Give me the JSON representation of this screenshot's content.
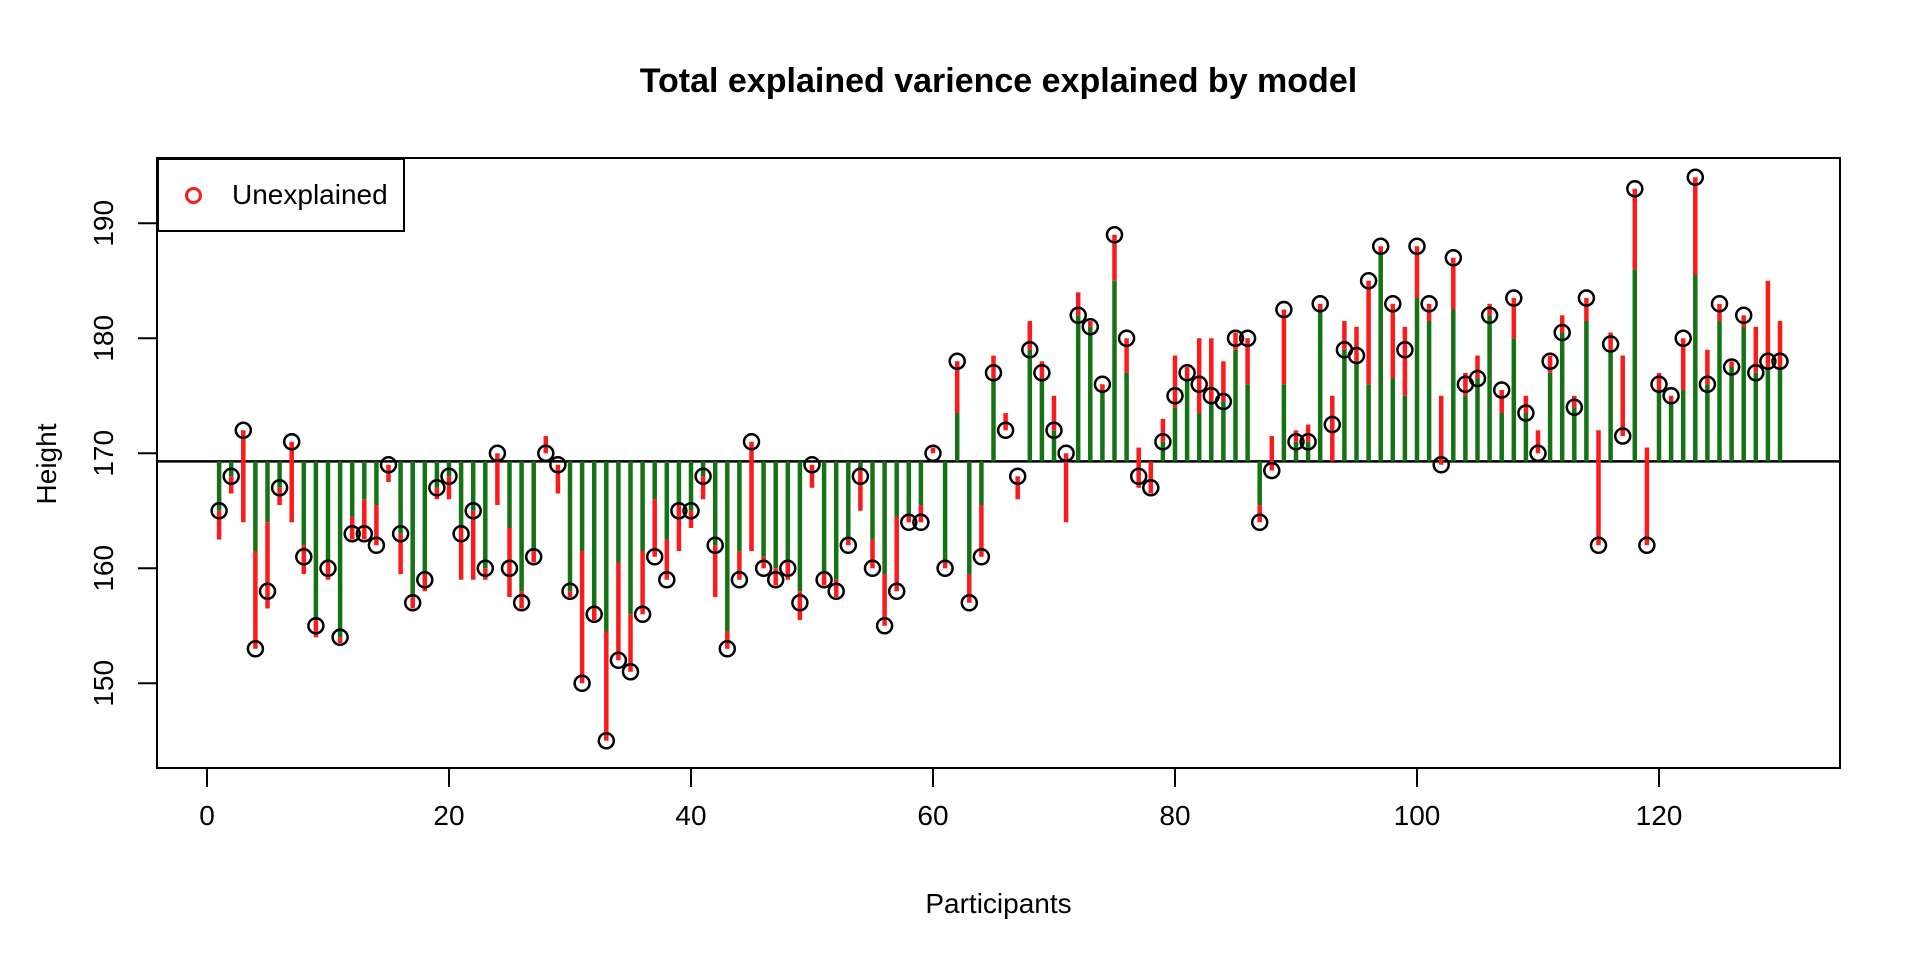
{
  "chart_data": {
    "type": "scatter",
    "subtype": "stem-residual-plot",
    "title": "Total explained varience explained by model",
    "xlabel": "Participants",
    "ylabel": "Height",
    "x_ticks": [
      0,
      20,
      40,
      60,
      80,
      100,
      120
    ],
    "y_ticks": [
      150,
      160,
      170,
      180,
      190
    ],
    "xlim": [
      -4.2,
      135.2
    ],
    "ylim": [
      142.6,
      195.7
    ],
    "grid": false,
    "mean_line": 169.3,
    "legend": {
      "label": "Unexplained",
      "marker": "o",
      "position": "top-left"
    },
    "colors": {
      "explained": "#157315",
      "unexplained": "#fc1a1a",
      "point": "#000000",
      "axis": "#000000"
    },
    "note": "participants: [actual(circle), green_end(null=none; green spans mean..g), red_from, red_to]",
    "participants": [
      [
        165,
        165,
        165,
        162.5
      ],
      [
        168,
        168,
        168,
        166.5
      ],
      [
        172,
        null,
        172,
        164
      ],
      [
        153,
        161.5,
        161.5,
        153
      ],
      [
        158,
        164,
        164,
        156.5
      ],
      [
        167,
        167,
        167,
        165.5
      ],
      [
        171,
        null,
        171,
        164
      ],
      [
        161,
        162,
        162,
        159.5
      ],
      [
        155,
        155.5,
        155.5,
        154
      ],
      [
        160,
        160.5,
        160.5,
        159
      ],
      [
        154,
        154,
        154,
        153.5
      ],
      [
        163,
        164.5,
        164.5,
        162.5
      ],
      [
        163,
        166,
        166,
        162.5
      ],
      [
        162,
        165.5,
        165.5,
        162
      ],
      [
        169,
        null,
        169,
        167.5
      ],
      [
        163,
        163,
        163,
        159.5
      ],
      [
        157,
        157.5,
        157.5,
        156.5
      ],
      [
        159,
        159.5,
        159.5,
        158
      ],
      [
        167,
        167,
        167,
        166
      ],
      [
        168,
        168,
        168,
        166
      ],
      [
        163,
        163.5,
        163.5,
        159
      ],
      [
        165,
        165,
        165,
        159
      ],
      [
        160,
        160,
        160,
        159
      ],
      [
        170,
        null,
        170,
        165.5
      ],
      [
        160,
        163.5,
        163.5,
        157.5
      ],
      [
        157,
        158,
        158,
        156.5
      ],
      [
        161,
        161.5,
        161.5,
        160.5
      ],
      [
        170,
        null,
        170,
        171.5
      ],
      [
        169,
        null,
        169,
        166.5
      ],
      [
        158,
        158,
        158,
        157.5
      ],
      [
        150,
        161.5,
        161.5,
        150
      ],
      [
        156,
        156.5,
        156.5,
        155.5
      ],
      [
        145,
        154.5,
        154.5,
        145
      ],
      [
        152,
        160.5,
        160.5,
        152
      ],
      [
        151,
        156,
        156,
        151
      ],
      [
        156,
        161.5,
        161.5,
        156
      ],
      [
        161,
        166,
        166,
        161
      ],
      [
        159,
        162.5,
        162.5,
        159
      ],
      [
        165,
        165.5,
        165.5,
        161.5
      ],
      [
        165,
        165,
        165,
        163.5
      ],
      [
        168,
        168,
        168,
        166
      ],
      [
        162,
        162,
        162,
        157.5
      ],
      [
        153,
        154.5,
        154.5,
        153
      ],
      [
        159,
        161.5,
        161.5,
        159
      ],
      [
        171,
        null,
        171,
        161.5
      ],
      [
        160,
        161,
        161,
        160
      ],
      [
        159,
        160,
        160,
        158.5
      ],
      [
        160,
        160.5,
        160.5,
        159
      ],
      [
        157,
        158,
        158,
        155.5
      ],
      [
        169,
        null,
        169,
        167
      ],
      [
        159,
        159.5,
        159.5,
        158.5
      ],
      [
        158,
        159,
        159,
        157.5
      ],
      [
        162,
        162.5,
        162.5,
        162
      ],
      [
        168,
        168.5,
        168.5,
        165
      ],
      [
        160,
        162.5,
        162.5,
        160
      ],
      [
        155,
        159.5,
        159.5,
        155
      ],
      [
        158,
        164.5,
        164.5,
        158
      ],
      [
        164,
        164.5,
        164.5,
        164
      ],
      [
        164,
        165.5,
        165.5,
        164
      ],
      [
        170,
        null,
        170,
        170.5
      ],
      [
        160,
        160.5,
        160.5,
        160
      ],
      [
        178,
        173.5,
        173.5,
        178
      ],
      [
        157,
        159.5,
        159.5,
        157
      ],
      [
        161,
        165.5,
        165.5,
        161
      ],
      [
        177,
        176.5,
        176.5,
        178.5
      ],
      [
        172,
        null,
        172,
        173.5
      ],
      [
        168,
        null,
        168,
        166
      ],
      [
        179,
        179,
        179,
        181.5
      ],
      [
        177,
        176.5,
        176.5,
        178
      ],
      [
        172,
        172,
        172,
        175
      ],
      [
        170,
        null,
        170,
        164
      ],
      [
        182,
        182,
        182,
        184
      ],
      [
        181,
        181,
        181,
        181.5
      ],
      [
        176,
        175.5,
        175.5,
        176
      ],
      [
        189,
        185,
        185,
        189
      ],
      [
        180,
        177,
        177,
        180
      ],
      [
        168,
        null,
        170.5,
        167
      ],
      [
        167,
        null,
        169.3,
        166.5
      ],
      [
        171,
        171,
        171,
        173
      ],
      [
        175,
        174,
        174,
        178.5
      ],
      [
        177,
        176.5,
        176.5,
        177.5
      ],
      [
        176,
        173.5,
        173.5,
        180
      ],
      [
        175,
        174.5,
        174.5,
        180
      ],
      [
        174.5,
        174.5,
        174.5,
        178
      ],
      [
        180,
        179,
        179,
        180.5
      ],
      [
        180,
        176,
        176,
        180
      ],
      [
        164,
        165.5,
        165.5,
        164
      ],
      [
        168.5,
        null,
        171.5,
        168.5
      ],
      [
        182.5,
        176,
        176,
        182.5
      ],
      [
        171,
        171,
        171,
        172
      ],
      [
        171,
        171,
        171,
        172.5
      ],
      [
        183,
        182.5,
        182.5,
        183
      ],
      [
        172.5,
        null,
        175,
        169.3
      ],
      [
        179,
        179,
        179,
        181.5
      ],
      [
        178.5,
        178,
        178,
        181
      ],
      [
        185,
        176,
        176,
        185
      ],
      [
        188,
        187.5,
        187.5,
        188
      ],
      [
        183,
        176.5,
        176.5,
        183
      ],
      [
        179,
        175,
        175,
        181
      ],
      [
        188,
        183.5,
        183.5,
        188
      ],
      [
        183,
        181.5,
        181.5,
        183
      ],
      [
        169,
        null,
        175,
        169
      ],
      [
        187,
        182.5,
        182.5,
        187
      ],
      [
        176,
        175,
        175,
        177
      ],
      [
        176.5,
        176.5,
        176.5,
        178.5
      ],
      [
        182,
        182,
        182,
        183
      ],
      [
        175.5,
        173.5,
        173.5,
        175.5
      ],
      [
        183.5,
        180,
        180,
        183.5
      ],
      [
        173.5,
        173.5,
        173.5,
        175
      ],
      [
        170,
        null,
        170,
        172
      ],
      [
        178,
        177,
        177,
        178.5
      ],
      [
        180.5,
        180.5,
        180.5,
        182
      ],
      [
        174,
        174,
        174,
        175
      ],
      [
        183.5,
        181.5,
        181.5,
        183.5
      ],
      [
        162,
        null,
        172,
        162
      ],
      [
        179.5,
        179,
        179,
        180.5
      ],
      [
        171.5,
        null,
        178.5,
        171.5
      ],
      [
        193,
        186,
        186,
        193
      ],
      [
        162,
        null,
        170.5,
        162
      ],
      [
        176,
        175.5,
        175.5,
        177
      ],
      [
        175,
        174.5,
        174.5,
        175
      ],
      [
        180,
        175.5,
        175.5,
        180
      ],
      [
        194,
        185.5,
        185.5,
        194
      ],
      [
        176,
        176,
        176,
        179
      ],
      [
        183,
        181.5,
        181.5,
        183
      ],
      [
        177.5,
        177.5,
        177.5,
        178
      ],
      [
        182,
        181,
        181,
        182
      ],
      [
        177,
        177,
        177,
        181
      ],
      [
        178,
        177.5,
        177.5,
        185
      ],
      [
        178,
        177.5,
        177.5,
        181.5
      ]
    ]
  }
}
